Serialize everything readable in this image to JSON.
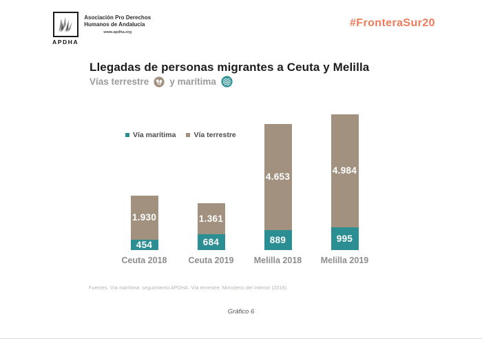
{
  "logo": {
    "acronym": "APDHA",
    "org_line1": "Asociación Pro Derechos",
    "org_line2": "Humanos de Andalucía",
    "website": "www.apdha.org"
  },
  "header": {
    "hashtag": "#FronteraSur20",
    "title": "Llegadas de personas migrantes a Ceuta y Melilla",
    "subtitle_prefix": "Vías terrestre",
    "subtitle_middle": "y marítima"
  },
  "icons": {
    "terrestre": "footprints-icon",
    "maritima": "waves-icon"
  },
  "colors": {
    "maritima_teal": "#2b8e93",
    "terrestre_taupe": "#a39180",
    "accent_orange": "#ee7b5b"
  },
  "chart_data": {
    "type": "bar",
    "stacked": true,
    "title": "Llegadas de personas migrantes a Ceuta y Melilla",
    "categories": [
      "Ceuta 2018",
      "Ceuta 2019",
      "Melilla 2018",
      "Melilla 2019"
    ],
    "series": [
      {
        "name": "Vía marítima",
        "color": "#2b8e93",
        "values": [
          454,
          684,
          889,
          995
        ],
        "labels": [
          "454",
          "684",
          "889",
          "995"
        ]
      },
      {
        "name": "Vía terrestre",
        "color": "#a39180",
        "values": [
          1930,
          1361,
          4653,
          4984
        ],
        "labels": [
          "1.930",
          "1.361",
          "4.653",
          "4.984"
        ]
      }
    ],
    "totals": [
      2384,
      2045,
      5542,
      5979
    ],
    "legend_position": "top-left",
    "grid": false,
    "axes_visible": false,
    "ylim": [
      0,
      6000
    ]
  },
  "footer": {
    "sources": "Fuentes. Vía marítima: seguimiento APDHA. Vía terrestre: Ministerio del Interior (2019).",
    "grafico_label": "Gráfico 6"
  }
}
